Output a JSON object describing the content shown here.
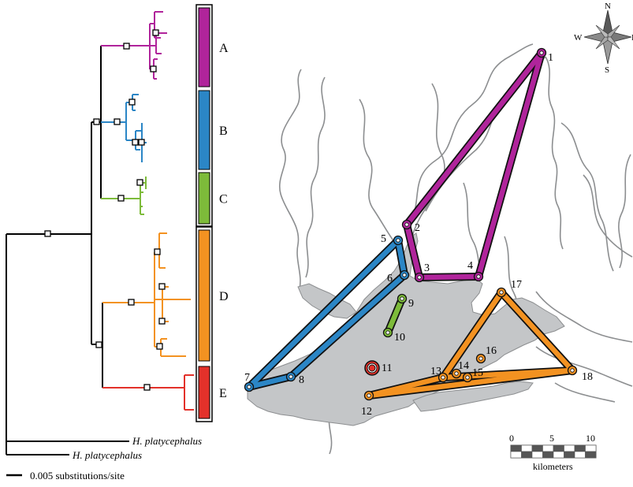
{
  "clades": [
    {
      "id": "A",
      "label": "A",
      "color": "#b0249b"
    },
    {
      "id": "B",
      "label": "B",
      "color": "#2b86c6"
    },
    {
      "id": "C",
      "label": "C",
      "color": "#7dbb3a"
    },
    {
      "id": "D",
      "label": "D",
      "color": "#f39221"
    },
    {
      "id": "E",
      "label": "E",
      "color": "#e3312a"
    }
  ],
  "tree": {
    "outgroup_1": "H. platycephalus",
    "outgroup_2": "H. platycephalus",
    "scale_label": "0.005 substitutions/site",
    "branch_color": "#000000"
  },
  "map": {
    "compass": {
      "n": "N",
      "s": "S",
      "e": "E",
      "w": "W"
    },
    "scalebar": {
      "ticks": [
        "0",
        "5",
        "10"
      ],
      "unit": "kilometers"
    },
    "water_color": "#c4c6c8",
    "river_color": "#8c8e90",
    "sites": [
      {
        "label": "1"
      },
      {
        "label": "2"
      },
      {
        "label": "3"
      },
      {
        "label": "4"
      },
      {
        "label": "5"
      },
      {
        "label": "6"
      },
      {
        "label": "7"
      },
      {
        "label": "8"
      },
      {
        "label": "9"
      },
      {
        "label": "10"
      },
      {
        "label": "11"
      },
      {
        "label": "12"
      },
      {
        "label": "13"
      },
      {
        "label": "14"
      },
      {
        "label": "15"
      },
      {
        "label": "16"
      },
      {
        "label": "17"
      },
      {
        "label": "18"
      }
    ]
  }
}
